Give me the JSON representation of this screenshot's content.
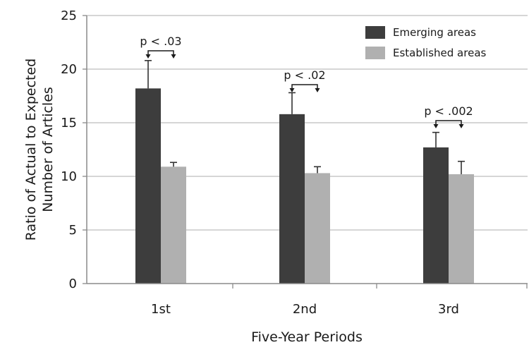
{
  "chart_data": {
    "type": "bar",
    "categories": [
      "1st",
      "2nd",
      "3rd"
    ],
    "series": [
      {
        "name": "Emerging areas",
        "color": "#3d3d3d",
        "values": [
          18.2,
          15.8,
          12.7
        ],
        "errors": [
          2.6,
          2.0,
          1.4
        ]
      },
      {
        "name": "Established areas",
        "color": "#b0b0b0",
        "values": [
          10.9,
          10.3,
          10.2
        ],
        "errors": [
          0.4,
          0.6,
          1.2
        ]
      }
    ],
    "significance": [
      {
        "category": "1st",
        "label": "p < .03"
      },
      {
        "category": "2nd",
        "label": "p < .02"
      },
      {
        "category": "3rd",
        "label": "p < .002"
      }
    ],
    "xlabel": "Five-Year Periods",
    "ylabel_lines": [
      "Ratio of Actual to Expected",
      "Number of Articles"
    ],
    "ylim": [
      0,
      25
    ],
    "yticks": [
      0,
      5,
      10,
      15,
      20,
      25
    ],
    "grid": true,
    "legend_position": "top-right"
  }
}
